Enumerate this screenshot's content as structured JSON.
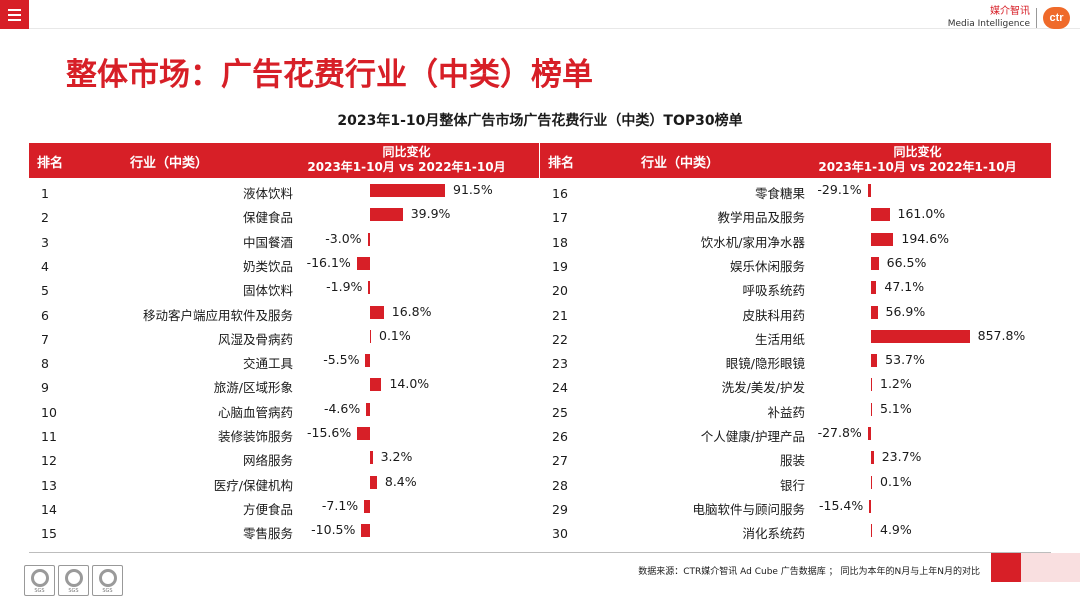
{
  "header": {
    "logo_cn": "媒介智讯",
    "logo_en": "Media Intelligence",
    "logo_mark": "ctr"
  },
  "page_title": "整体市场：广告花费行业（中类）榜单",
  "table_headers": {
    "rank": "排名",
    "industry": "行业（中类）",
    "yoy_line1": "同比变化",
    "yoy_line2": "2023年1-10月 vs 2022年1-10月"
  },
  "footer": {
    "source": "数据来源：CTR媒介智讯 Ad Cube 广告数据库 ； 同比为本年的N月与上年N月的对比",
    "badge_text": "SGS"
  },
  "colors": {
    "accent": "#d71f27",
    "pink": "#f9dfe0"
  },
  "chart_data": {
    "type": "bar",
    "title": "2023年1-10月整体广告市场广告花费行业（中类）TOP30榜单",
    "value_unit": "%",
    "left": [
      {
        "rank": "1",
        "industry": "液体饮料",
        "value": 91.5,
        "label": "91.5%"
      },
      {
        "rank": "2",
        "industry": "保健食品",
        "value": 39.9,
        "label": "39.9%"
      },
      {
        "rank": "3",
        "industry": "中国餐酒",
        "value": -3.0,
        "label": "-3.0%"
      },
      {
        "rank": "4",
        "industry": "奶类饮品",
        "value": -16.1,
        "label": "-16.1%"
      },
      {
        "rank": "5",
        "industry": "固体饮料",
        "value": -1.9,
        "label": "-1.9%"
      },
      {
        "rank": "6",
        "industry": "移动客户端应用软件及服务",
        "value": 16.8,
        "label": "16.8%"
      },
      {
        "rank": "7",
        "industry": "风湿及骨病药",
        "value": 0.1,
        "label": "0.1%"
      },
      {
        "rank": "8",
        "industry": "交通工具",
        "value": -5.5,
        "label": "-5.5%"
      },
      {
        "rank": "9",
        "industry": "旅游/区域形象",
        "value": 14.0,
        "label": "14.0%"
      },
      {
        "rank": "10",
        "industry": "心脑血管病药",
        "value": -4.6,
        "label": "-4.6%"
      },
      {
        "rank": "11",
        "industry": "装修装饰服务",
        "value": -15.6,
        "label": "-15.6%"
      },
      {
        "rank": "12",
        "industry": "网络服务",
        "value": 3.2,
        "label": "3.2%"
      },
      {
        "rank": "13",
        "industry": "医疗/保健机构",
        "value": 8.4,
        "label": "8.4%"
      },
      {
        "rank": "14",
        "industry": "方便食品",
        "value": -7.1,
        "label": "-7.1%"
      },
      {
        "rank": "15",
        "industry": "零售服务",
        "value": -10.5,
        "label": "-10.5%"
      }
    ],
    "right": [
      {
        "rank": "16",
        "industry": "零食糖果",
        "value": -29.1,
        "label": "-29.1%"
      },
      {
        "rank": "17",
        "industry": "教学用品及服务",
        "value": 161.0,
        "label": "161.0%"
      },
      {
        "rank": "18",
        "industry": "饮水机/家用净水器",
        "value": 194.6,
        "label": "194.6%"
      },
      {
        "rank": "19",
        "industry": "娱乐休闲服务",
        "value": 66.5,
        "label": "66.5%"
      },
      {
        "rank": "20",
        "industry": "呼吸系统药",
        "value": 47.1,
        "label": "47.1%"
      },
      {
        "rank": "21",
        "industry": "皮肤科用药",
        "value": 56.9,
        "label": "56.9%"
      },
      {
        "rank": "22",
        "industry": "生活用纸",
        "value": 857.8,
        "label": "857.8%"
      },
      {
        "rank": "23",
        "industry": "眼镜/隐形眼镜",
        "value": 53.7,
        "label": "53.7%"
      },
      {
        "rank": "24",
        "industry": "洗发/美发/护发",
        "value": 1.2,
        "label": "1.2%"
      },
      {
        "rank": "25",
        "industry": "补益药",
        "value": 5.1,
        "label": "5.1%"
      },
      {
        "rank": "26",
        "industry": "个人健康/护理产品",
        "value": -27.8,
        "label": "-27.8%"
      },
      {
        "rank": "27",
        "industry": "服装",
        "value": 23.7,
        "label": "23.7%"
      },
      {
        "rank": "28",
        "industry": "银行",
        "value": 0.1,
        "label": "0.1%"
      },
      {
        "rank": "29",
        "industry": "电脑软件与顾问服务",
        "value": -15.4,
        "label": "-15.4%"
      },
      {
        "rank": "30",
        "industry": "消化系统药",
        "value": 4.9,
        "label": "4.9%"
      }
    ]
  }
}
